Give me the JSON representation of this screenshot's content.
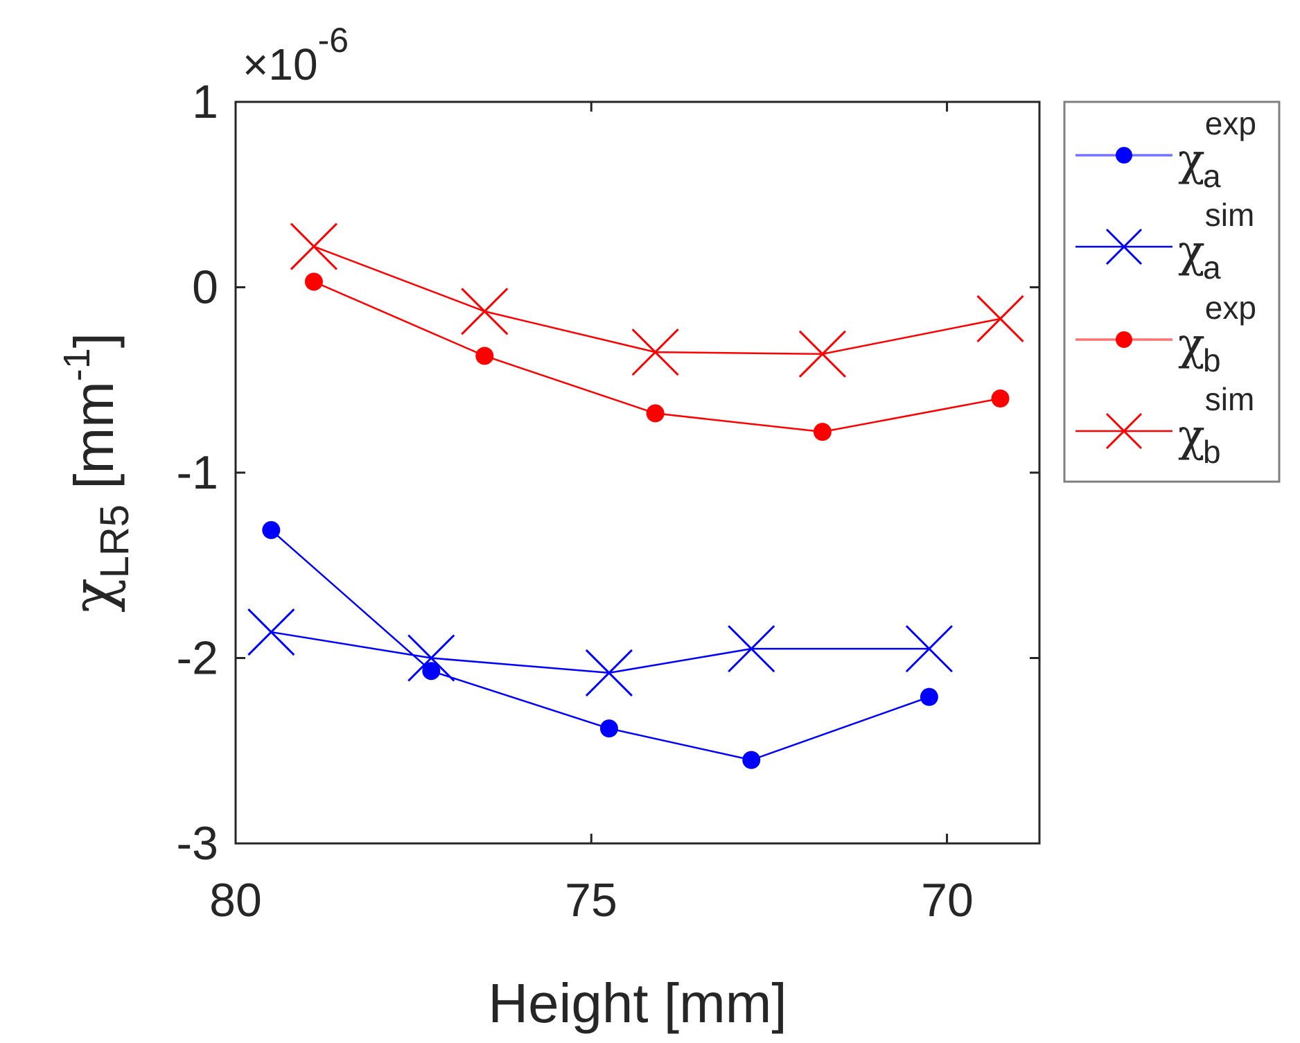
{
  "chart_data": {
    "type": "line",
    "title": "",
    "xlabel": "Height [mm]",
    "ylabel_symbol": "χ",
    "ylabel_sub": "LR5",
    "ylabel_unit_open": " [mm",
    "ylabel_unit_sup": "-1",
    "ylabel_unit_close": "]",
    "y_exponent_prefix": "×10",
    "y_exponent_sup": "-6",
    "xlim": [
      80,
      68.7
    ],
    "x_reversed": true,
    "ylim": [
      -3,
      1
    ],
    "xticks": [
      80,
      75,
      70
    ],
    "xtick_labels": [
      "80",
      "75",
      "70"
    ],
    "yticks": [
      1,
      0,
      -1,
      -2,
      -3
    ],
    "ytick_labels": [
      "1",
      "0",
      "-1",
      "-2",
      "-3"
    ],
    "grid": false,
    "legend_position": "outside-right-top",
    "colors": {
      "blue": "#0000ff",
      "red": "#ff0000",
      "axis": "#262626",
      "legend_border": "#7f7f7f"
    },
    "series": [
      {
        "name": "chi_a_exp",
        "symbol": "χ",
        "sub": "a",
        "sup": "exp",
        "color": "#0000ff",
        "marker": "dot",
        "x": [
          79.5,
          77.25,
          74.75,
          72.75,
          70.25
        ],
        "y": [
          -1.31,
          -2.07,
          -2.38,
          -2.55,
          -2.21
        ]
      },
      {
        "name": "chi_a_sim",
        "symbol": "χ",
        "sub": "a",
        "sup": "sim",
        "color": "#0000ff",
        "marker": "x",
        "x": [
          79.5,
          77.25,
          74.75,
          72.75,
          70.25
        ],
        "y": [
          -1.86,
          -2.0,
          -2.08,
          -1.95,
          -1.95
        ]
      },
      {
        "name": "chi_b_exp",
        "symbol": "χ",
        "sub": "b",
        "sup": "exp",
        "color": "#ff0000",
        "marker": "dot",
        "x": [
          78.9,
          76.5,
          74.1,
          71.75,
          69.25
        ],
        "y": [
          0.03,
          -0.37,
          -0.68,
          -0.78,
          -0.6
        ]
      },
      {
        "name": "chi_b_sim",
        "symbol": "χ",
        "sub": "b",
        "sup": "sim",
        "color": "#ff0000",
        "marker": "x",
        "x": [
          78.9,
          76.5,
          74.1,
          71.75,
          69.25
        ],
        "y": [
          0.22,
          -0.13,
          -0.35,
          -0.36,
          -0.17
        ]
      }
    ]
  }
}
